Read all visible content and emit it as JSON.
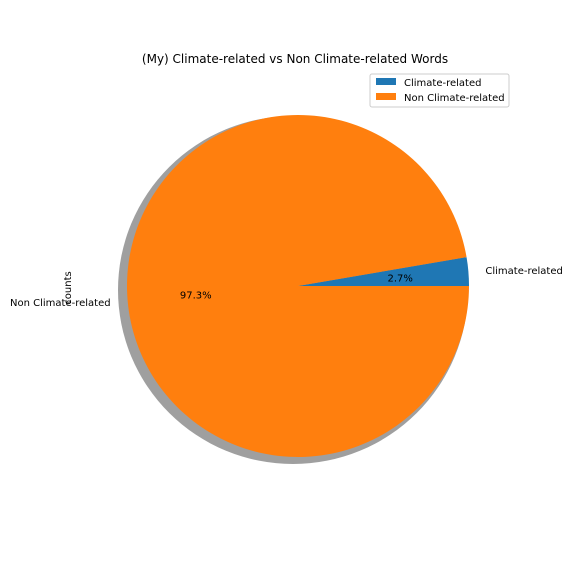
{
  "chart_data": {
    "type": "pie",
    "title": "(My) Climate-related vs Non Climate-related Words",
    "ylabel": "counts",
    "slices": [
      {
        "label": "Climate-related",
        "value": 2.7,
        "pct_label": "2.7%",
        "color": "#1f77b4"
      },
      {
        "label": "Non Climate-related",
        "value": 97.3,
        "pct_label": "97.3%",
        "color": "#ff7f0e"
      }
    ],
    "start_angle_deg": 0,
    "shadow": true,
    "legend": {
      "placement": "top-right",
      "entries": [
        "Climate-related",
        "Non Climate-related"
      ]
    }
  }
}
